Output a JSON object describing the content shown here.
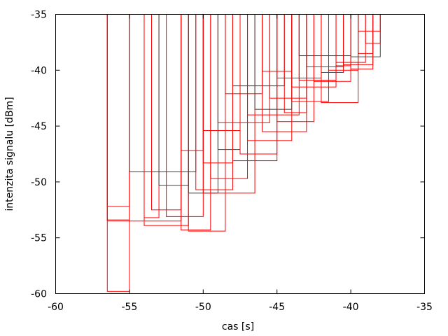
{
  "chart_data": {
    "type": "rectangles",
    "title": "",
    "xlabel": "cas [s]",
    "ylabel": "intenzita signalu [dBm]",
    "xlim": [
      -60,
      -35
    ],
    "ylim": [
      -60,
      -35
    ],
    "xticks": [
      "-60",
      "-55",
      "-50",
      "-45",
      "-40",
      "-35"
    ],
    "yticks": [
      "-60",
      "-55",
      "-50",
      "-45",
      "-40",
      "-35"
    ],
    "grid": false,
    "colors": {
      "primary": "#ff0000",
      "secondary": "#404040"
    },
    "boxes_note_top": -35,
    "rects": [
      {
        "x1": -56.5,
        "x2": -55,
        "y": -59.8,
        "c": "primary"
      },
      {
        "x1": -56.5,
        "x2": -55,
        "y": -53.4,
        "c": "primary"
      },
      {
        "x1": -56.5,
        "x2": -55,
        "y": -52.2,
        "c": "primary"
      },
      {
        "x1": -56.5,
        "x2": -51.5,
        "y": -53.5,
        "c": "primary"
      },
      {
        "x1": -55,
        "x2": -50.5,
        "y": -49.1,
        "c": "secondary"
      },
      {
        "x1": -54,
        "x2": -53,
        "y": -53.2,
        "c": "primary"
      },
      {
        "x1": -54,
        "x2": -51,
        "y": -53.9,
        "c": "primary"
      },
      {
        "x1": -53.5,
        "x2": -51.5,
        "y": -52.5,
        "c": "primary"
      },
      {
        "x1": -53,
        "x2": -51,
        "y": -50.3,
        "c": "secondary"
      },
      {
        "x1": -52.5,
        "x2": -50,
        "y": -53.1,
        "c": "primary"
      },
      {
        "x1": -51.5,
        "x2": -50,
        "y": -47.2,
        "c": "primary"
      },
      {
        "x1": -51.5,
        "x2": -49.5,
        "y": -54.3,
        "c": "primary"
      },
      {
        "x1": -51,
        "x2": -48.5,
        "y": -54.4,
        "c": "primary"
      },
      {
        "x1": -51,
        "x2": -49,
        "y": -51.0,
        "c": "secondary"
      },
      {
        "x1": -50.5,
        "x2": -48,
        "y": -50.7,
        "c": "primary"
      },
      {
        "x1": -50,
        "x2": -47.5,
        "y": -45.4,
        "c": "primary"
      },
      {
        "x1": -50,
        "x2": -48,
        "y": -48.3,
        "c": "primary"
      },
      {
        "x1": -50,
        "x2": -46.5,
        "y": -51.0,
        "c": "primary"
      },
      {
        "x1": -49.5,
        "x2": -47,
        "y": -49.7,
        "c": "primary"
      },
      {
        "x1": -49,
        "x2": -47.5,
        "y": -47.1,
        "c": "secondary"
      },
      {
        "x1": -49,
        "x2": -45.5,
        "y": -44.7,
        "c": "primary"
      },
      {
        "x1": -48.5,
        "x2": -46,
        "y": -42.1,
        "c": "primary"
      },
      {
        "x1": -48,
        "x2": -44.5,
        "y": -41.4,
        "c": "secondary"
      },
      {
        "x1": -48,
        "x2": -45,
        "y": -48.1,
        "c": "primary"
      },
      {
        "x1": -47.5,
        "x2": -45,
        "y": -47.5,
        "c": "primary"
      },
      {
        "x1": -47,
        "x2": -44,
        "y": -46.3,
        "c": "primary"
      },
      {
        "x1": -47,
        "x2": -43.5,
        "y": -44.0,
        "c": "primary"
      },
      {
        "x1": -46.5,
        "x2": -44,
        "y": -43.5,
        "c": "secondary"
      },
      {
        "x1": -46,
        "x2": -44,
        "y": -40.1,
        "c": "primary"
      },
      {
        "x1": -46,
        "x2": -43,
        "y": -45.5,
        "c": "primary"
      },
      {
        "x1": -45.5,
        "x2": -43,
        "y": -42.5,
        "c": "primary"
      },
      {
        "x1": -45,
        "x2": -42,
        "y": -40.7,
        "c": "primary"
      },
      {
        "x1": -45,
        "x2": -42.5,
        "y": -44.6,
        "c": "primary"
      },
      {
        "x1": -44.5,
        "x2": -43,
        "y": -43.8,
        "c": "primary"
      },
      {
        "x1": -44,
        "x2": -41,
        "y": -41.5,
        "c": "primary"
      },
      {
        "x1": -44,
        "x2": -41.5,
        "y": -42.8,
        "c": "primary"
      },
      {
        "x1": -43.5,
        "x2": -40,
        "y": -38.7,
        "c": "secondary"
      },
      {
        "x1": -43.5,
        "x2": -41,
        "y": -40.9,
        "c": "primary"
      },
      {
        "x1": -43,
        "x2": -40.5,
        "y": -39.7,
        "c": "primary"
      },
      {
        "x1": -42.5,
        "x2": -40,
        "y": -41.0,
        "c": "primary"
      },
      {
        "x1": -42,
        "x2": -39.5,
        "y": -42.9,
        "c": "primary"
      },
      {
        "x1": -42,
        "x2": -40.5,
        "y": -40.2,
        "c": "primary"
      },
      {
        "x1": -41.5,
        "x2": -39.5,
        "y": -40.0,
        "c": "primary"
      },
      {
        "x1": -41,
        "x2": -39,
        "y": -39.3,
        "c": "primary"
      },
      {
        "x1": -41,
        "x2": -40,
        "y": -39.6,
        "c": "primary"
      },
      {
        "x1": -40.5,
        "x2": -38.5,
        "y": -39.5,
        "c": "primary"
      },
      {
        "x1": -40,
        "x2": -38,
        "y": -38.8,
        "c": "secondary"
      },
      {
        "x1": -40,
        "x2": -38.5,
        "y": -39.9,
        "c": "primary"
      },
      {
        "x1": -39.5,
        "x2": -38.5,
        "y": -38.5,
        "c": "primary"
      },
      {
        "x1": -39.5,
        "x2": -38,
        "y": -36.5,
        "c": "primary"
      },
      {
        "x1": -39,
        "x2": -38,
        "y": -37.6,
        "c": "primary"
      }
    ]
  }
}
